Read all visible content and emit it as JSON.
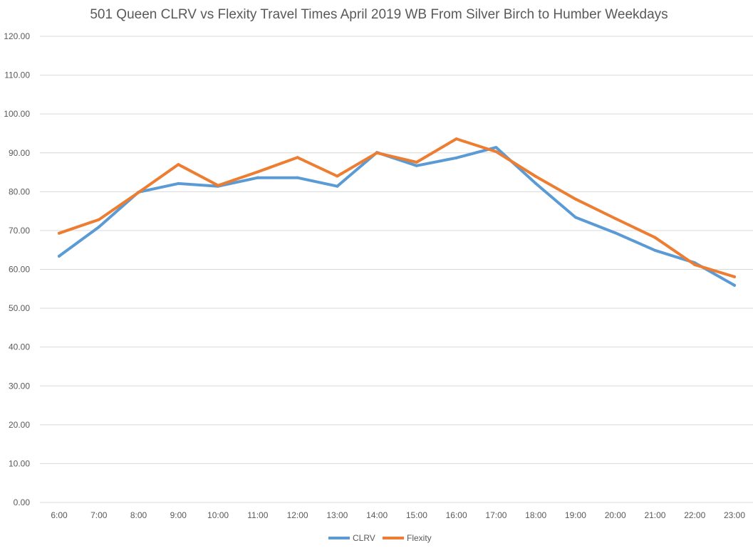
{
  "chart_data": {
    "type": "line",
    "title": "501 Queen CLRV vs Flexity Travel Times April 2019 WB From Silver Birch to Humber Weekdays",
    "xlabel": "",
    "ylabel": "",
    "ylim": [
      0,
      120
    ],
    "yticks": [
      "0.00",
      "10.00",
      "20.00",
      "30.00",
      "40.00",
      "50.00",
      "60.00",
      "70.00",
      "80.00",
      "90.00",
      "100.00",
      "110.00",
      "120.00"
    ],
    "categories": [
      "6:00",
      "7:00",
      "8:00",
      "9:00",
      "10:00",
      "11:00",
      "12:00",
      "13:00",
      "14:00",
      "15:00",
      "16:00",
      "17:00",
      "18:00",
      "19:00",
      "20:00",
      "21:00",
      "22:00",
      "23:00"
    ],
    "grid": true,
    "legend_position": "bottom",
    "series": [
      {
        "name": "CLRV",
        "color": "#5b9bd5",
        "values": [
          63.4,
          70.9,
          79.9,
          82.1,
          81.4,
          83.6,
          83.6,
          81.4,
          90.1,
          86.7,
          88.7,
          91.4,
          82.1,
          73.4,
          69.4,
          64.9,
          61.7,
          55.9
        ]
      },
      {
        "name": "Flexity",
        "color": "#ed7d31",
        "values": [
          69.3,
          72.8,
          79.8,
          87.0,
          81.6,
          85.1,
          88.8,
          84.0,
          90.0,
          87.6,
          93.6,
          90.3,
          83.9,
          78.1,
          73.1,
          68.2,
          61.2,
          58.1
        ]
      }
    ]
  }
}
